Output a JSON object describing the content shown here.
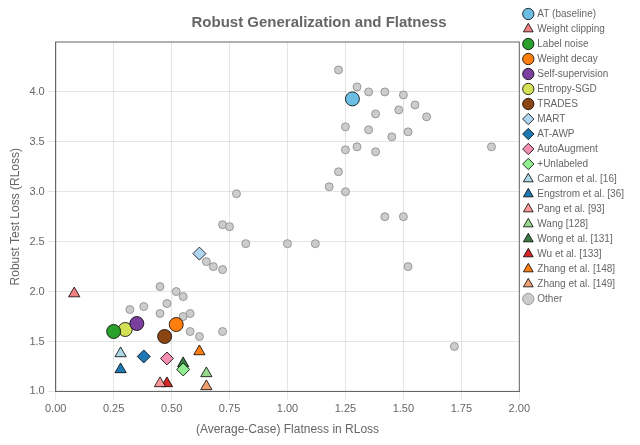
{
  "chart_data": {
    "type": "scatter",
    "title": "Robust Generalization and Flatness",
    "xlabel": "(Average-Case) Flatness in RLoss",
    "ylabel": "Robust Test Loss (RLoss)",
    "xlim": [
      0.0,
      2.0
    ],
    "ylim": [
      1.0,
      4.5
    ],
    "xticks": [
      {
        "value": 0.0,
        "label": "0.00"
      },
      {
        "value": 0.25,
        "label": "0.25"
      },
      {
        "value": 0.5,
        "label": "0.50"
      },
      {
        "value": 0.75,
        "label": "0.75"
      },
      {
        "value": 1.0,
        "label": "1.00"
      },
      {
        "value": 1.25,
        "label": "1.25"
      },
      {
        "value": 1.5,
        "label": "1.50"
      },
      {
        "value": 1.75,
        "label": "1.75"
      },
      {
        "value": 2.0,
        "label": "2.00"
      }
    ],
    "yticks": [
      {
        "value": 1.0,
        "label": "1.0"
      },
      {
        "value": 1.5,
        "label": "1.5"
      },
      {
        "value": 2.0,
        "label": "2.0"
      },
      {
        "value": 2.5,
        "label": "2.5"
      },
      {
        "value": 3.0,
        "label": "3.0"
      },
      {
        "value": 3.5,
        "label": "3.5"
      },
      {
        "value": 4.0,
        "label": "4.0"
      }
    ],
    "grid": true,
    "legend": "right",
    "series": [
      {
        "name": "Other",
        "color": "#cccccc",
        "marker": "circle",
        "x": [
          1.22,
          1.3,
          1.35,
          1.42,
          1.5,
          1.55,
          1.48,
          1.38,
          1.6,
          1.25,
          1.35,
          1.52,
          1.45,
          1.3,
          1.25,
          1.38,
          1.22,
          1.18,
          1.25,
          0.78,
          0.72,
          0.75,
          0.82,
          1.12,
          1.0,
          0.65,
          0.68,
          0.72,
          1.42,
          1.5,
          1.52,
          0.45,
          0.52,
          0.55,
          0.48,
          0.38,
          0.32,
          0.45,
          0.55,
          0.58,
          0.58,
          0.62,
          0.72,
          1.88,
          1.72
        ],
        "values": [
          4.22,
          4.05,
          4.0,
          4.0,
          3.97,
          3.87,
          3.82,
          3.78,
          3.75,
          3.65,
          3.62,
          3.6,
          3.55,
          3.45,
          3.42,
          3.4,
          3.2,
          3.05,
          3.0,
          2.98,
          2.67,
          2.65,
          2.48,
          2.48,
          2.48,
          2.3,
          2.25,
          2.22,
          2.75,
          2.75,
          2.25,
          2.05,
          2.0,
          1.95,
          1.88,
          1.85,
          1.82,
          1.78,
          1.75,
          1.78,
          1.6,
          1.55,
          1.6,
          3.45,
          1.45
        ]
      },
      {
        "name": "AT (baseline)",
        "color": "#6bbde3",
        "marker": "circle",
        "x": [
          1.28
        ],
        "values": [
          3.93
        ]
      },
      {
        "name": "Weight clipping",
        "color": "#f08080",
        "marker": "triangle",
        "x": [
          0.08
        ],
        "values": [
          1.98
        ]
      },
      {
        "name": "Label noise",
        "color": "#2ca02c",
        "marker": "circle",
        "x": [
          0.25
        ],
        "values": [
          1.6
        ]
      },
      {
        "name": "Weight decay",
        "color": "#ff7f0e",
        "marker": "circle",
        "x": [
          0.52
        ],
        "values": [
          1.67
        ]
      },
      {
        "name": "Self-supervision",
        "color": "#7b3fa0",
        "marker": "circle",
        "x": [
          0.35
        ],
        "values": [
          1.68
        ]
      },
      {
        "name": "Entropy-SGD",
        "color": "#d4e157",
        "marker": "circle",
        "x": [
          0.3
        ],
        "values": [
          1.62
        ]
      },
      {
        "name": "TRADES",
        "color": "#8b4513",
        "marker": "circle",
        "x": [
          0.47
        ],
        "values": [
          1.55
        ]
      },
      {
        "name": "MART",
        "color": "#aed6f1",
        "marker": "diamond",
        "x": [
          0.62
        ],
        "values": [
          2.38
        ]
      },
      {
        "name": "AT-AWP",
        "color": "#1f77b4",
        "marker": "diamond",
        "x": [
          0.38
        ],
        "values": [
          1.35
        ]
      },
      {
        "name": "AutoAugment",
        "color": "#f48fb1",
        "marker": "diamond",
        "x": [
          0.48
        ],
        "values": [
          1.33
        ]
      },
      {
        "name": "+Unlabeled",
        "color": "#90ee90",
        "marker": "diamond",
        "x": [
          0.55
        ],
        "values": [
          1.22
        ]
      },
      {
        "name": "Carmon et al. [16]",
        "color": "#add8e6",
        "marker": "triangle",
        "x": [
          0.28
        ],
        "values": [
          1.38
        ]
      },
      {
        "name": "Engstrom et al. [36]",
        "color": "#1f77b4",
        "marker": "triangle",
        "x": [
          0.28
        ],
        "values": [
          1.22
        ]
      },
      {
        "name": "Pang et al. [93]",
        "color": "#ff9999",
        "marker": "triangle",
        "x": [
          0.45
        ],
        "values": [
          1.08
        ]
      },
      {
        "name": "Wang [128]",
        "color": "#98d98e",
        "marker": "triangle",
        "x": [
          0.65
        ],
        "values": [
          1.18
        ]
      },
      {
        "name": "Wong et al. [131]",
        "color": "#3a7d44",
        "marker": "triangle",
        "x": [
          0.55
        ],
        "values": [
          1.28
        ]
      },
      {
        "name": "Wu et al. [133]",
        "color": "#d62728",
        "marker": "triangle",
        "x": [
          0.48
        ],
        "values": [
          1.08
        ]
      },
      {
        "name": "Zhang et al. [148]",
        "color": "#ff7f0e",
        "marker": "triangle",
        "x": [
          0.62
        ],
        "values": [
          1.4
        ]
      },
      {
        "name": "Zhang et al. [149]",
        "color": "#f0a070",
        "marker": "triangle",
        "x": [
          0.65
        ],
        "values": [
          1.05
        ]
      }
    ]
  }
}
